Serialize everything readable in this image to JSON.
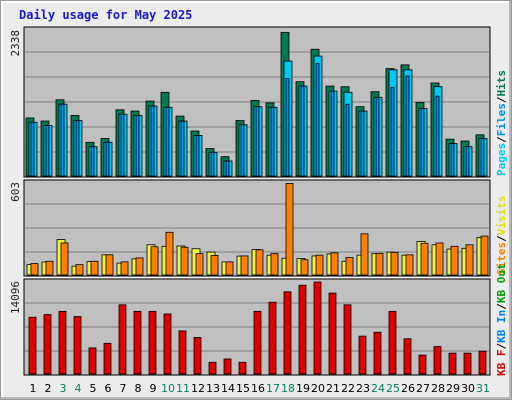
{
  "title": "Daily usage for May 2025",
  "colors": {
    "pages": "#00c8f0",
    "files": "#0090f0",
    "hits": "#007850",
    "visits": "#f0f040",
    "sites": "#ff8000",
    "kbin": "#0080ff",
    "kbout": "#00a000",
    "kbf": "#e00000",
    "weekend_day": "#008060",
    "weekday_day": "#000000",
    "panel_bg": "#c0c0c0"
  },
  "chart_data": [
    {
      "type": "bar",
      "panel": "hits_files_pages",
      "ymax_label": "2338",
      "ylim": [
        0,
        2338
      ],
      "legend": [
        "Pages",
        "Files",
        "Hits"
      ],
      "categories": [
        "1",
        "2",
        "3",
        "4",
        "5",
        "6",
        "7",
        "8",
        "9",
        "10",
        "11",
        "12",
        "13",
        "14",
        "15",
        "16",
        "17",
        "18",
        "19",
        "20",
        "21",
        "22",
        "23",
        "24",
        "25",
        "26",
        "27",
        "28",
        "29",
        "30",
        "31"
      ],
      "series": [
        {
          "name": "Hits",
          "values": [
            930,
            880,
            1220,
            970,
            540,
            600,
            1060,
            1040,
            1200,
            1340,
            960,
            720,
            440,
            310,
            890,
            1210,
            1170,
            2300,
            1510,
            2030,
            1440,
            1430,
            1110,
            1350,
            1720,
            1780,
            1180,
            1490,
            590,
            560,
            660
          ]
        },
        {
          "name": "Files",
          "values": [
            860,
            810,
            1150,
            890,
            470,
            540,
            990,
            970,
            1120,
            1100,
            880,
            650,
            380,
            240,
            820,
            1110,
            1100,
            1560,
            1440,
            1800,
            1360,
            1150,
            1040,
            1260,
            1420,
            1600,
            1080,
            1280,
            520,
            470,
            600
          ]
        },
        {
          "name": "Pages",
          "values": [
            860,
            810,
            1150,
            890,
            470,
            540,
            990,
            970,
            1120,
            1100,
            880,
            650,
            380,
            240,
            820,
            1110,
            1100,
            1840,
            1440,
            1920,
            1360,
            1340,
            1040,
            1260,
            1700,
            1700,
            1080,
            1430,
            520,
            470,
            600
          ]
        }
      ]
    },
    {
      "type": "bar",
      "panel": "visits_sites",
      "ymax_label": "603",
      "ylim": [
        0,
        603
      ],
      "legend": [
        "Visits",
        "Sites"
      ],
      "categories": [
        "1",
        "2",
        "3",
        "4",
        "5",
        "6",
        "7",
        "8",
        "9",
        "10",
        "11",
        "12",
        "13",
        "14",
        "15",
        "16",
        "17",
        "18",
        "19",
        "20",
        "21",
        "22",
        "23",
        "24",
        "25",
        "26",
        "27",
        "28",
        "29",
        "30",
        "31"
      ],
      "series": [
        {
          "name": "Visits",
          "values": [
            68,
            85,
            232,
            58,
            88,
            132,
            78,
            106,
            198,
            188,
            190,
            172,
            150,
            86,
            124,
            168,
            130,
            110,
            108,
            125,
            138,
            90,
            130,
            140,
            150,
            130,
            220,
            198,
            170,
            175,
            245
          ]
        },
        {
          "name": "Sites",
          "values": [
            75,
            90,
            210,
            68,
            90,
            132,
            86,
            112,
            185,
            280,
            182,
            140,
            128,
            86,
            125,
            165,
            140,
            600,
            100,
            130,
            145,
            115,
            270,
            142,
            148,
            132,
            208,
            210,
            188,
            198,
            255
          ]
        }
      ]
    },
    {
      "type": "bar",
      "panel": "kbytes",
      "ymax_label": "14096",
      "ylim": [
        0,
        14096
      ],
      "legend": [
        "KB F",
        "KB In",
        "KB Out"
      ],
      "categories": [
        "1",
        "2",
        "3",
        "4",
        "5",
        "6",
        "7",
        "8",
        "9",
        "10",
        "11",
        "12",
        "13",
        "14",
        "15",
        "16",
        "17",
        "18",
        "19",
        "20",
        "21",
        "22",
        "23",
        "24",
        "25",
        "26",
        "27",
        "28",
        "29",
        "30",
        "31"
      ],
      "series": [
        {
          "name": "KB F",
          "values": [
            8700,
            9100,
            9600,
            8800,
            4000,
            4700,
            10600,
            9600,
            9600,
            9200,
            6600,
            5600,
            1800,
            2300,
            1800,
            9600,
            11000,
            12600,
            13600,
            14096,
            12400,
            10600,
            5800,
            6400,
            9600,
            5400,
            2900,
            4200,
            3200,
            3200,
            3500
          ]
        }
      ]
    }
  ],
  "days": {
    "labels": [
      "1",
      "2",
      "3",
      "4",
      "5",
      "6",
      "7",
      "8",
      "9",
      "10",
      "11",
      "12",
      "13",
      "14",
      "15",
      "16",
      "17",
      "18",
      "19",
      "20",
      "21",
      "22",
      "23",
      "24",
      "25",
      "26",
      "27",
      "28",
      "29",
      "30",
      "31"
    ],
    "weekend": [
      false,
      false,
      true,
      true,
      false,
      false,
      false,
      false,
      false,
      true,
      true,
      false,
      false,
      false,
      false,
      false,
      true,
      true,
      false,
      false,
      false,
      false,
      false,
      true,
      true,
      false,
      false,
      false,
      false,
      false,
      true
    ]
  }
}
